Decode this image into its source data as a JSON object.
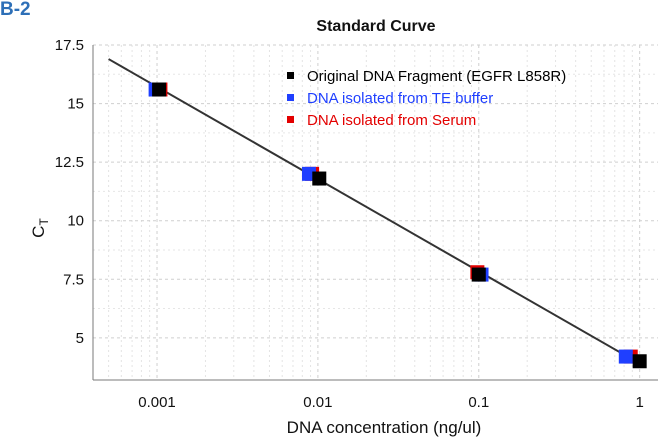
{
  "panel_label": "B-2",
  "chart_data": {
    "type": "scatter",
    "title": "Standard Curve",
    "xlabel": "DNA concentration (ng/ul)",
    "ylabel_main": "C",
    "ylabel_sub": "T",
    "x_scale": "log",
    "xlim": [
      0.0004,
      1.3
    ],
    "ylim": [
      3.2,
      17.5
    ],
    "x_ticks": [
      0.001,
      0.01,
      0.1,
      1
    ],
    "x_tick_labels": [
      "0.001",
      "0.01",
      "0.1",
      "1"
    ],
    "y_ticks": [
      5,
      7.5,
      10,
      12.5,
      15,
      17.5
    ],
    "y_tick_labels": [
      "5",
      "7.5",
      "10",
      "12.5",
      "15",
      "17.5"
    ],
    "grid": true,
    "legend_position": "top-right",
    "fit_line": {
      "x": [
        0.0005,
        1
      ],
      "y": [
        16.9,
        3.9
      ],
      "color": "#333333"
    },
    "series": [
      {
        "name": "DNA isolated from Serum",
        "color": "#e30000",
        "x": [
          0.00105,
          0.0092,
          0.098,
          0.88
        ],
        "y": [
          15.6,
          12.0,
          7.8,
          4.2
        ]
      },
      {
        "name": "DNA isolated from TE buffer",
        "color": "#1f3fff",
        "x": [
          0.00098,
          0.0088,
          0.104,
          0.82
        ],
        "y": [
          15.6,
          12.0,
          7.7,
          4.2
        ]
      },
      {
        "name": "Original DNA Fragment (EGFR L858R)",
        "color": "#000000",
        "x": [
          0.00103,
          0.0102,
          0.1,
          1.0
        ],
        "y": [
          15.6,
          11.8,
          7.7,
          4.0
        ]
      }
    ],
    "legend_order": [
      2,
      1,
      0
    ]
  }
}
